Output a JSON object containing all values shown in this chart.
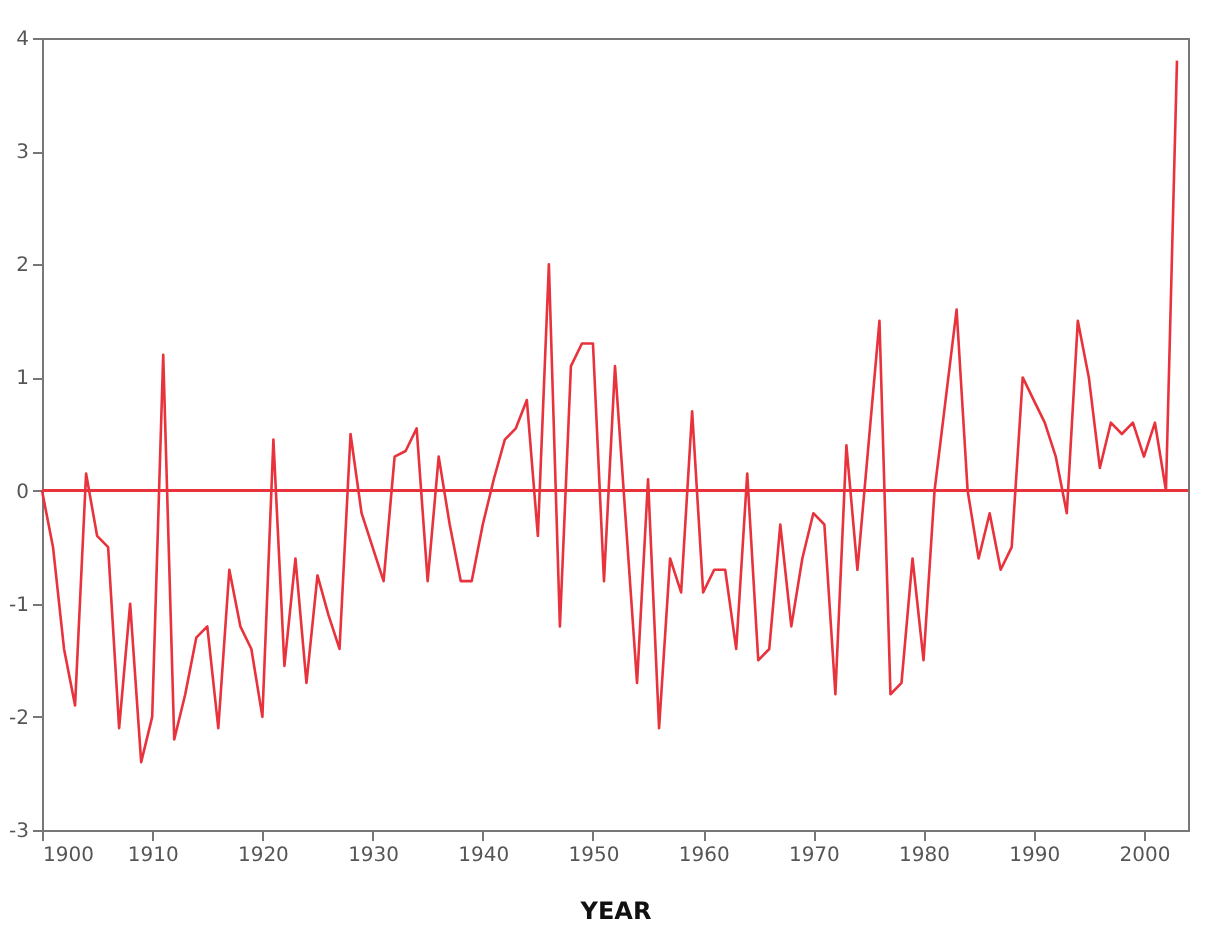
{
  "chart_data": {
    "type": "line",
    "xlabel": "YEAR",
    "x": [
      1900,
      1901,
      1902,
      1903,
      1904,
      1905,
      1906,
      1907,
      1908,
      1909,
      1910,
      1911,
      1912,
      1913,
      1914,
      1915,
      1916,
      1917,
      1918,
      1919,
      1920,
      1921,
      1922,
      1923,
      1924,
      1925,
      1926,
      1927,
      1928,
      1929,
      1930,
      1931,
      1932,
      1933,
      1934,
      1935,
      1936,
      1937,
      1938,
      1939,
      1940,
      1941,
      1942,
      1943,
      1944,
      1945,
      1946,
      1947,
      1948,
      1949,
      1950,
      1951,
      1952,
      1953,
      1954,
      1955,
      1956,
      1957,
      1958,
      1959,
      1960,
      1961,
      1962,
      1963,
      1964,
      1965,
      1966,
      1967,
      1968,
      1969,
      1970,
      1971,
      1972,
      1973,
      1974,
      1975,
      1976,
      1977,
      1978,
      1979,
      1980,
      1981,
      1982,
      1983,
      1984,
      1985,
      1986,
      1987,
      1988,
      1989,
      1990,
      1991,
      1992,
      1993,
      1994,
      1995,
      1996,
      1997,
      1998,
      1999,
      2000,
      2001,
      2002,
      2003
    ],
    "series": [
      {
        "color": "#e8323c",
        "values": [
          0,
          -0.5,
          -1.4,
          -1.9,
          0.15,
          -0.4,
          -0.5,
          -2.1,
          -1.0,
          -2.4,
          -2.0,
          1.2,
          -2.2,
          -1.8,
          -1.3,
          -1.2,
          -2.1,
          -0.7,
          -1.2,
          -1.4,
          -2.0,
          0.45,
          -1.55,
          -0.6,
          -1.7,
          -0.75,
          -1.1,
          -1.4,
          0.5,
          -0.2,
          -0.5,
          -0.8,
          0.3,
          0.35,
          0.55,
          -0.8,
          0.3,
          -0.3,
          -0.8,
          -0.8,
          -0.3,
          0.1,
          0.45,
          0.55,
          0.8,
          -0.4,
          2.0,
          -1.2,
          1.1,
          1.3,
          1.3,
          -0.8,
          1.1,
          -0.3,
          -1.7,
          0.1,
          -2.1,
          -0.6,
          -0.9,
          0.7,
          -0.9,
          -0.7,
          -0.7,
          -1.4,
          0.15,
          -1.5,
          -1.4,
          -0.3,
          -1.2,
          -0.6,
          -0.2,
          -0.3,
          -1.8,
          0.4,
          -0.7,
          0.4,
          1.5,
          -1.8,
          -1.7,
          -0.6,
          -1.5,
          0.0,
          0.8,
          1.6,
          0.0,
          -0.6,
          -0.2,
          -0.7,
          -0.5,
          1.0,
          0.8,
          0.6,
          0.3,
          -0.2,
          1.5,
          1.0,
          0.2,
          0.6,
          0.5,
          0.6,
          0.3,
          0.6,
          0.0,
          3.8
        ]
      }
    ],
    "xlim": [
      1900,
      2004
    ],
    "xticks": [
      1900,
      1910,
      1920,
      1930,
      1940,
      1950,
      1960,
      1970,
      1980,
      1990,
      2000
    ],
    "ylim": [
      -3,
      4
    ],
    "yticks": [
      -3,
      -2,
      -1,
      0,
      1,
      2,
      3,
      4
    ],
    "ref_lines": [
      {
        "axis": "y",
        "value": 0,
        "color": "#e8323c"
      }
    ],
    "grid": false,
    "marker": "none",
    "line_style": "solid"
  }
}
